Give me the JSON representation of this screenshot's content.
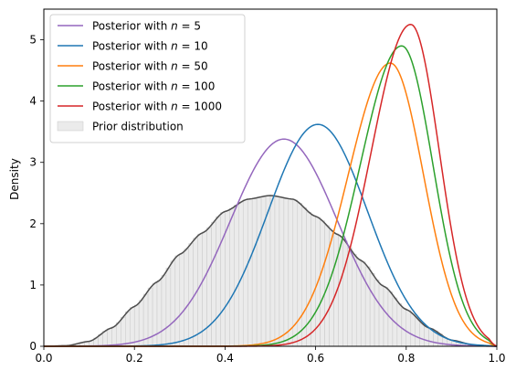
{
  "chart_data": {
    "type": "line",
    "title": "",
    "xlabel": "",
    "ylabel": "Density",
    "xlim": [
      0.0,
      1.0
    ],
    "ylim": [
      0,
      5.5
    ],
    "xticks": [
      0.0,
      0.2,
      0.4,
      0.6,
      0.8,
      1.0
    ],
    "xtick_labels": [
      "0.0",
      "0.2",
      "0.4",
      "0.6",
      "0.8",
      "1.0"
    ],
    "yticks": [
      0,
      1,
      2,
      3,
      4,
      5
    ],
    "ytick_labels": [
      "0",
      "1",
      "2",
      "3",
      "4",
      "5"
    ],
    "grid": false,
    "legend_position": "top-left",
    "prior": {
      "name": "Prior distribution",
      "fill_color": "#ebebeb",
      "edge_color": "#c8c8c8",
      "line_color": "#4d4d4d",
      "bin_width": 0.01,
      "x": [
        0.0,
        0.05,
        0.1,
        0.15,
        0.2,
        0.25,
        0.3,
        0.35,
        0.4,
        0.45,
        0.5,
        0.55,
        0.6,
        0.65,
        0.7,
        0.75,
        0.8,
        0.85,
        0.9,
        0.95,
        1.0
      ],
      "y": [
        0.0,
        0.01,
        0.08,
        0.3,
        0.65,
        1.05,
        1.5,
        1.85,
        2.2,
        2.4,
        2.46,
        2.4,
        2.12,
        1.82,
        1.4,
        0.98,
        0.6,
        0.3,
        0.1,
        0.02,
        0.0
      ]
    },
    "series": [
      {
        "name": "Posterior with $n = 5$",
        "label_prefix": "Posterior with ",
        "label_math": "n",
        "label_suffix": " = 5",
        "color": "#9467bd",
        "peak_x": 0.53,
        "peak_y": 3.38,
        "sd": 0.118,
        "skew": 0
      },
      {
        "name": "Posterior with $n = 10$",
        "label_prefix": "Posterior with ",
        "label_math": "n",
        "label_suffix": " = 10",
        "color": "#1f77b4",
        "peak_x": 0.605,
        "peak_y": 3.62,
        "sd": 0.11,
        "skew": 0
      },
      {
        "name": "Posterior with $n = 50$",
        "label_prefix": "Posterior with ",
        "label_math": "n",
        "label_suffix": " = 50",
        "color": "#ff7f0e",
        "peak_x": 0.765,
        "peak_y": 4.62,
        "sd": 0.083,
        "skew": 0.12
      },
      {
        "name": "Posterior with $n = 100$",
        "label_prefix": "Posterior with ",
        "label_math": "n",
        "label_suffix": " = 100",
        "color": "#2ca02c",
        "peak_x": 0.79,
        "peak_y": 4.9,
        "sd": 0.08,
        "skew": 0.14
      },
      {
        "name": "Posterior with $n = 1000$",
        "label_prefix": "Posterior with ",
        "label_math": "n",
        "label_suffix": " = 1000",
        "color": "#d62728",
        "peak_x": 0.81,
        "peak_y": 5.25,
        "sd": 0.075,
        "skew": 0.16
      }
    ]
  }
}
